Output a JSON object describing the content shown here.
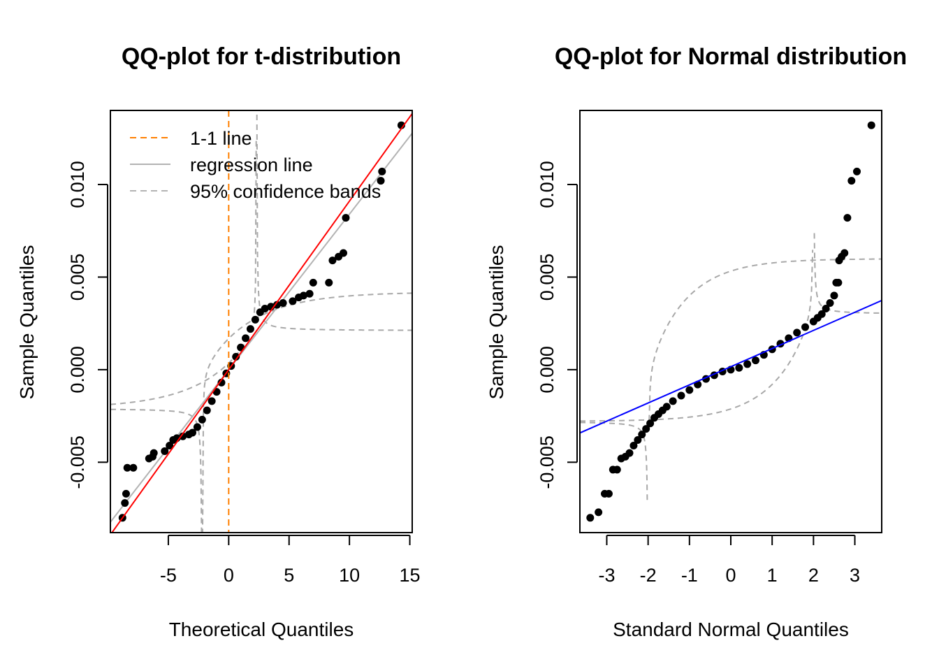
{
  "chart_data": [
    {
      "type": "scatter",
      "title": "QQ-plot for t-distribution",
      "xlabel": "Theoretical Quantiles",
      "ylabel": "Sample Quantiles",
      "xlim": [
        -9.8,
        15.2
      ],
      "ylim": [
        -0.0088,
        0.014
      ],
      "xticks": [
        -5,
        0,
        5,
        10,
        15
      ],
      "xtick_labels": [
        "-5",
        "0",
        "5",
        "10",
        "15"
      ],
      "yticks": [
        -0.005,
        0.0,
        0.005,
        0.01
      ],
      "ytick_labels": [
        "-0.005",
        "0.000",
        "0.005",
        "0.010"
      ],
      "grid": false,
      "legend_position": "top-left",
      "legend": [
        {
          "label": "1-1 line",
          "color": "#ff7f00",
          "style": "dashed"
        },
        {
          "label": "regression line",
          "color": "#b3b3b3",
          "style": "solid"
        },
        {
          "label": "95% confidence bands",
          "color": "#b3b3b3",
          "style": "dashed"
        }
      ],
      "points": [
        [
          -8.8,
          -0.008
        ],
        [
          -8.6,
          -0.0072
        ],
        [
          -8.5,
          -0.0067
        ],
        [
          -8.4,
          -0.0053
        ],
        [
          -7.9,
          -0.0053
        ],
        [
          -6.6,
          -0.0048
        ],
        [
          -6.3,
          -0.0047
        ],
        [
          -6.2,
          -0.0045
        ],
        [
          -5.3,
          -0.0044
        ],
        [
          -4.9,
          -0.0041
        ],
        [
          -4.6,
          -0.0038
        ],
        [
          -4.3,
          -0.0037
        ],
        [
          -3.8,
          -0.0036
        ],
        [
          -3.3,
          -0.0035
        ],
        [
          -3.0,
          -0.0034
        ],
        [
          -2.6,
          -0.0031
        ],
        [
          -2.2,
          -0.0027
        ],
        [
          -1.8,
          -0.0022
        ],
        [
          -1.4,
          -0.0017
        ],
        [
          -1.0,
          -0.0012
        ],
        [
          -0.6,
          -0.0007
        ],
        [
          -0.2,
          -0.0002
        ],
        [
          0.2,
          0.0002
        ],
        [
          0.6,
          0.0007
        ],
        [
          1.0,
          0.0012
        ],
        [
          1.4,
          0.0017
        ],
        [
          1.8,
          0.0022
        ],
        [
          2.2,
          0.0027
        ],
        [
          2.6,
          0.0031
        ],
        [
          3.0,
          0.0033
        ],
        [
          3.5,
          0.0034
        ],
        [
          4.0,
          0.0035
        ],
        [
          4.5,
          0.0036
        ],
        [
          5.3,
          0.0037
        ],
        [
          5.8,
          0.0039
        ],
        [
          6.2,
          0.004
        ],
        [
          6.7,
          0.0041
        ],
        [
          7.0,
          0.0047
        ],
        [
          8.3,
          0.0047
        ],
        [
          8.6,
          0.0059
        ],
        [
          9.1,
          0.0061
        ],
        [
          9.5,
          0.0063
        ],
        [
          9.7,
          0.0082
        ],
        [
          12.6,
          0.0102
        ],
        [
          12.7,
          0.0107
        ],
        [
          14.3,
          0.0132
        ]
      ],
      "one_to_one_line": {
        "x": 0
      },
      "reference_line": {
        "color": "#ff0000",
        "intercept": 0,
        "slope": 0.00091
      },
      "regression_line": {
        "color": "#b3b3b3",
        "intercept": 0,
        "slope": 0.00084
      },
      "confidence_band_asymptotes": {
        "upper_x": 2.3,
        "lower_x": -2.2,
        "upper_y": 0.0021,
        "lower_y": -0.0021
      }
    },
    {
      "type": "scatter",
      "title": "QQ-plot for Normal distribution",
      "xlabel": "Standard Normal Quantiles",
      "ylabel": "Sample Quantiles",
      "xlim": [
        -3.65,
        3.65
      ],
      "ylim": [
        -0.0088,
        0.014
      ],
      "xticks": [
        -3,
        -2,
        -1,
        0,
        1,
        2,
        3
      ],
      "xtick_labels": [
        "-3",
        "-2",
        "-1",
        "0",
        "1",
        "2",
        "3"
      ],
      "yticks": [
        -0.005,
        0.0,
        0.005,
        0.01
      ],
      "ytick_labels": [
        "-0.005",
        "0.000",
        "0.005",
        "0.010"
      ],
      "grid": false,
      "points": [
        [
          -3.4,
          -0.008
        ],
        [
          -3.2,
          -0.0077
        ],
        [
          -3.05,
          -0.0067
        ],
        [
          -2.95,
          -0.0067
        ],
        [
          -2.85,
          -0.0054
        ],
        [
          -2.75,
          -0.0054
        ],
        [
          -2.65,
          -0.0048
        ],
        [
          -2.55,
          -0.0047
        ],
        [
          -2.45,
          -0.0045
        ],
        [
          -2.35,
          -0.0041
        ],
        [
          -2.25,
          -0.0038
        ],
        [
          -2.15,
          -0.0035
        ],
        [
          -2.05,
          -0.0032
        ],
        [
          -1.95,
          -0.0029
        ],
        [
          -1.85,
          -0.0026
        ],
        [
          -1.75,
          -0.0024
        ],
        [
          -1.65,
          -0.0022
        ],
        [
          -1.55,
          -0.002
        ],
        [
          -1.4,
          -0.0017
        ],
        [
          -1.2,
          -0.0014
        ],
        [
          -1.0,
          -0.0011
        ],
        [
          -0.8,
          -0.0008
        ],
        [
          -0.6,
          -0.0005
        ],
        [
          -0.4,
          -0.0003
        ],
        [
          -0.2,
          -0.0001
        ],
        [
          0.0,
          0.0
        ],
        [
          0.2,
          0.0001
        ],
        [
          0.4,
          0.0003
        ],
        [
          0.6,
          0.0005
        ],
        [
          0.8,
          0.0008
        ],
        [
          1.0,
          0.0011
        ],
        [
          1.2,
          0.0014
        ],
        [
          1.4,
          0.0017
        ],
        [
          1.6,
          0.002
        ],
        [
          1.8,
          0.0023
        ],
        [
          2.0,
          0.0026
        ],
        [
          2.1,
          0.0028
        ],
        [
          2.2,
          0.003
        ],
        [
          2.3,
          0.0033
        ],
        [
          2.4,
          0.0036
        ],
        [
          2.5,
          0.004
        ],
        [
          2.55,
          0.0047
        ],
        [
          2.6,
          0.0047
        ],
        [
          2.62,
          0.0059
        ],
        [
          2.68,
          0.0061
        ],
        [
          2.75,
          0.0063
        ],
        [
          2.82,
          0.0082
        ],
        [
          2.92,
          0.0102
        ],
        [
          3.05,
          0.0107
        ],
        [
          3.4,
          0.0132
        ]
      ],
      "reference_line": {
        "color": "#0000ff",
        "intercept": 0.00016,
        "slope": 0.00098
      },
      "confidence_band_asymptotes": {
        "upper_x": 2.0,
        "lower_x": -2.0,
        "upper_y": 0.003,
        "lower_y": -0.0028
      }
    }
  ]
}
